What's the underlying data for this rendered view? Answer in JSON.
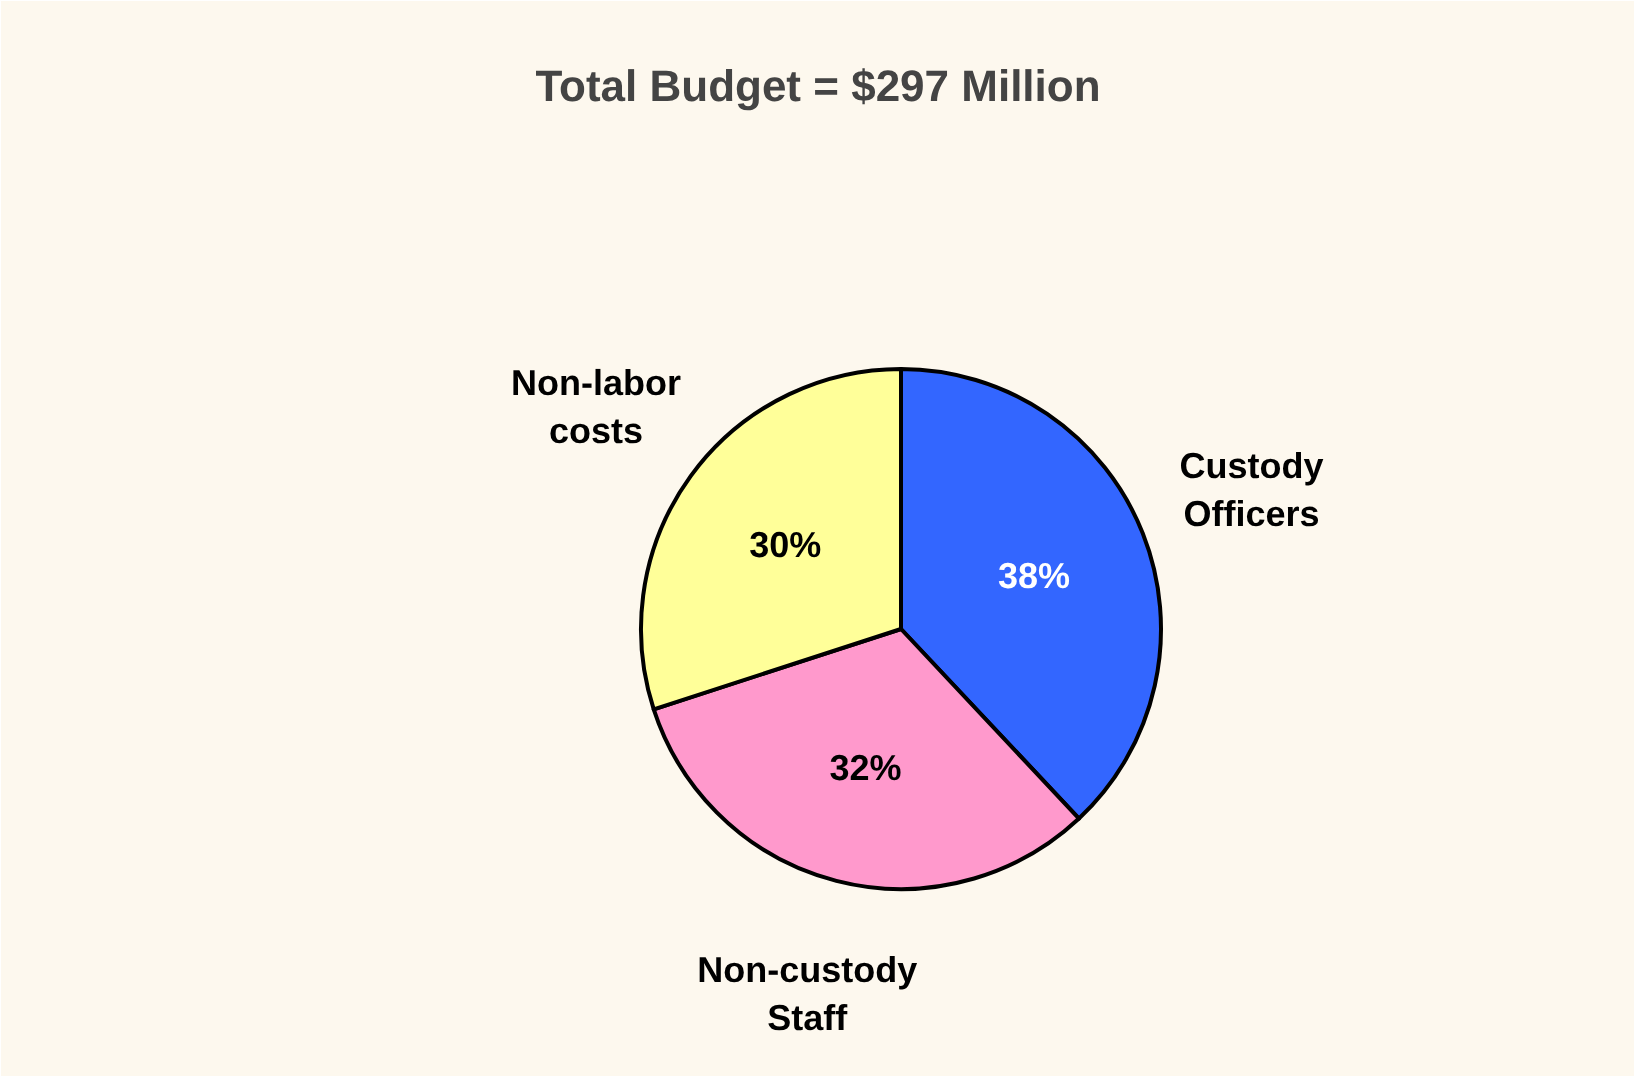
{
  "chart_data": {
    "type": "pie",
    "title": "Total Budget = $297 Million",
    "categories": [
      "Custody\nOfficers",
      "Non-custody\nStaff",
      "Non-labor\ncosts"
    ],
    "values": [
      38,
      32,
      30
    ],
    "value_labels": [
      "38%",
      "32%",
      "30%"
    ],
    "colors": [
      "#3366ff",
      "#ff99cc",
      "#ffff99"
    ]
  }
}
